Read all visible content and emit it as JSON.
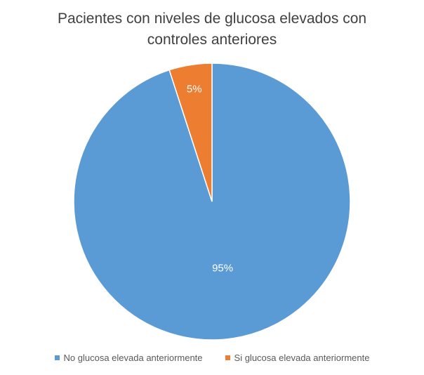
{
  "chart_data": {
    "type": "pie",
    "title": "Pacientes con niveles de glucosa elevados con controles anteriores",
    "categories": [
      "No glucosa elevada anteriormente",
      "Si glucosa elevada anteriormente"
    ],
    "values": [
      95,
      5
    ],
    "value_labels": [
      "95%",
      "5%"
    ],
    "colors": [
      "#5b9bd5",
      "#ed7d31"
    ],
    "legend": "bottom"
  }
}
